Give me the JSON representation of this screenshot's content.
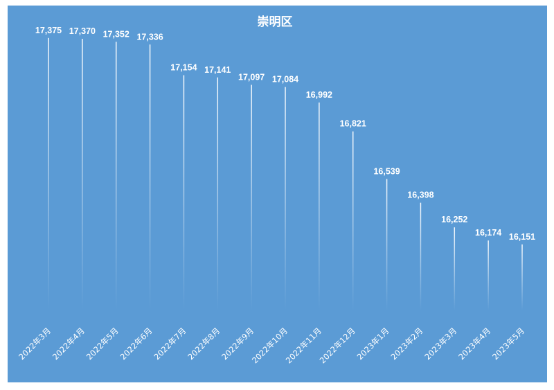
{
  "chart_data": {
    "type": "line",
    "title": "崇明区",
    "categories": [
      "2022年3月",
      "2022年4月",
      "2022年5月",
      "2022年6月",
      "2022年7月",
      "2022年8月",
      "2022年9月",
      "2022年10月",
      "2022年11月",
      "2022年12月",
      "2023年1月",
      "2023年2月",
      "2023年3月",
      "2023年4月",
      "2023年5月"
    ],
    "series": [
      {
        "values": [
          17375,
          17370,
          17352,
          17336,
          17154,
          17141,
          17097,
          17084,
          16992,
          16821,
          16539,
          16398,
          16252,
          16174,
          16151
        ],
        "labels": [
          "17,375",
          "17,370",
          "17,352",
          "17,336",
          "17,154",
          "17,141",
          "17,097",
          "17,084",
          "16,992",
          "16,821",
          "16,539",
          "16,398",
          "16,252",
          "16,174",
          "16,151"
        ]
      }
    ],
    "xlabel": "",
    "ylabel": "",
    "ylim": [
      15760,
      17600
    ],
    "grid": false,
    "legend": "none",
    "colors": {
      "background": "#5b9bd5",
      "line": "#ffffff",
      "text": "#ffffff"
    }
  }
}
